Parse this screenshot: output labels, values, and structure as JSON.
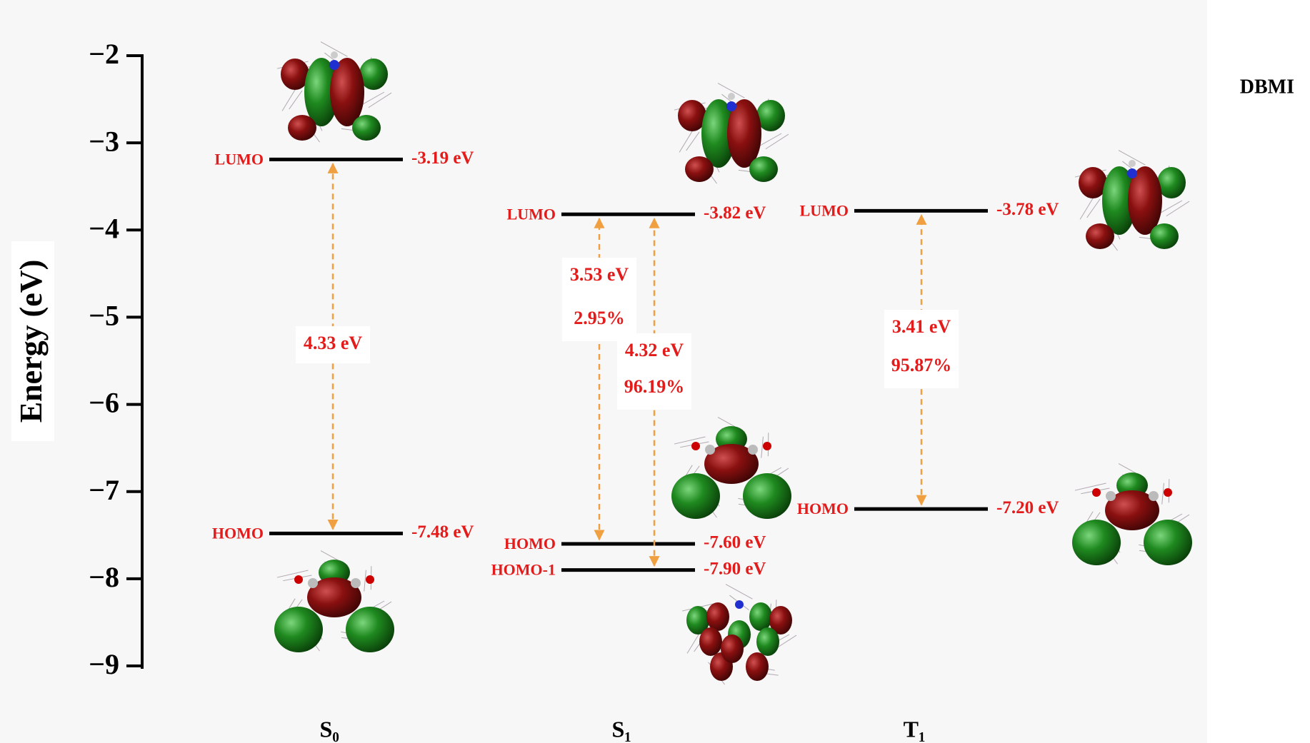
{
  "chart_data": {
    "type": "energy-level",
    "title": "DBMI",
    "y_label": "Energy (eV)",
    "ylim": [
      -9,
      -2
    ],
    "yticks": [
      {
        "value": -2,
        "label": "−2"
      },
      {
        "value": -3,
        "label": "−3"
      },
      {
        "value": -4,
        "label": "−4"
      },
      {
        "value": -5,
        "label": "−5"
      },
      {
        "value": -6,
        "label": "−6"
      },
      {
        "value": -7,
        "label": "−7"
      },
      {
        "value": -8,
        "label": "−8"
      },
      {
        "value": -9,
        "label": "−9"
      }
    ],
    "color": "#e31b1b",
    "line_color": "#000000",
    "arrow_color": "#f0a040",
    "states": [
      {
        "name": "S₀",
        "levels": [
          {
            "name": "LUMO",
            "value": -3.19,
            "value_label": "-3.19 eV"
          },
          {
            "name": "HOMO",
            "value": -7.48,
            "value_label": "-7.48 eV"
          }
        ],
        "transitions": [
          {
            "energy": 4.33,
            "energy_label": "4.33 eV"
          }
        ]
      },
      {
        "name": "S₁",
        "levels": [
          {
            "name": "LUMO",
            "value": -3.82,
            "value_label": "-3.82 eV"
          },
          {
            "name": "HOMO",
            "value": -7.6,
            "value_label": "-7.60 eV"
          },
          {
            "name": "HOMO-1",
            "value": -7.9,
            "value_label": "-7.90 eV"
          }
        ],
        "transitions": [
          {
            "energy": 3.53,
            "energy_label": "3.53 eV",
            "contribution": 2.95,
            "contribution_label": "2.95%"
          },
          {
            "energy": 4.32,
            "energy_label": "4.32 eV",
            "contribution": 96.19,
            "contribution_label": "96.19%"
          }
        ]
      },
      {
        "name": "T₁",
        "levels": [
          {
            "name": "LUMO",
            "value": -3.78,
            "value_label": "-3.78 eV"
          },
          {
            "name": "HOMO",
            "value": -7.2,
            "value_label": "-7.20 eV"
          }
        ],
        "transitions": [
          {
            "energy": 3.41,
            "energy_label": "3.41 eV",
            "contribution": 95.87,
            "contribution_label": "95.87%"
          }
        ]
      }
    ]
  }
}
